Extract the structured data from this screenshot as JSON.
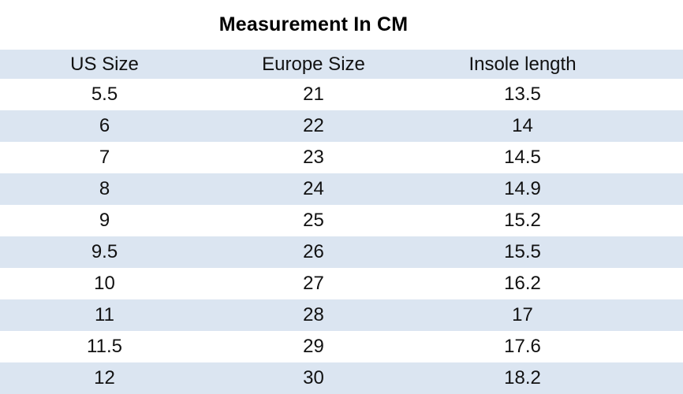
{
  "title": "Measurement In CM",
  "table": {
    "headers": [
      "US Size",
      "Europe Size",
      "Insole length"
    ],
    "rows": [
      [
        "5.5",
        "21",
        "13.5"
      ],
      [
        "6",
        "22",
        "14"
      ],
      [
        "7",
        "23",
        "14.5"
      ],
      [
        "8",
        "24",
        "14.9"
      ],
      [
        "9",
        "25",
        "15.2"
      ],
      [
        "9.5",
        "26",
        "15.5"
      ],
      [
        "10",
        "27",
        "16.2"
      ],
      [
        "11",
        "28",
        "17"
      ],
      [
        "11.5",
        "29",
        "17.6"
      ],
      [
        "12",
        "30",
        "18.2"
      ]
    ]
  },
  "colors": {
    "stripe": "#dbe5f1",
    "row_alt": "#ffffff",
    "text": "#111111",
    "title_text": "#000000"
  },
  "chart_data": {
    "type": "table",
    "title": "Measurement In CM",
    "columns": [
      "US Size",
      "Europe Size",
      "Insole length"
    ],
    "rows": [
      [
        5.5,
        21,
        13.5
      ],
      [
        6,
        22,
        14
      ],
      [
        7,
        23,
        14.5
      ],
      [
        8,
        24,
        14.9
      ],
      [
        9,
        25,
        15.2
      ],
      [
        9.5,
        26,
        15.5
      ],
      [
        10,
        27,
        16.2
      ],
      [
        11,
        28,
        17
      ],
      [
        11.5,
        29,
        17.6
      ],
      [
        12,
        30,
        18.2
      ]
    ],
    "layout": {
      "striped": true,
      "header_background": "#dbe5f1",
      "stripe_background": "#dbe5f1",
      "grid": false
    }
  }
}
